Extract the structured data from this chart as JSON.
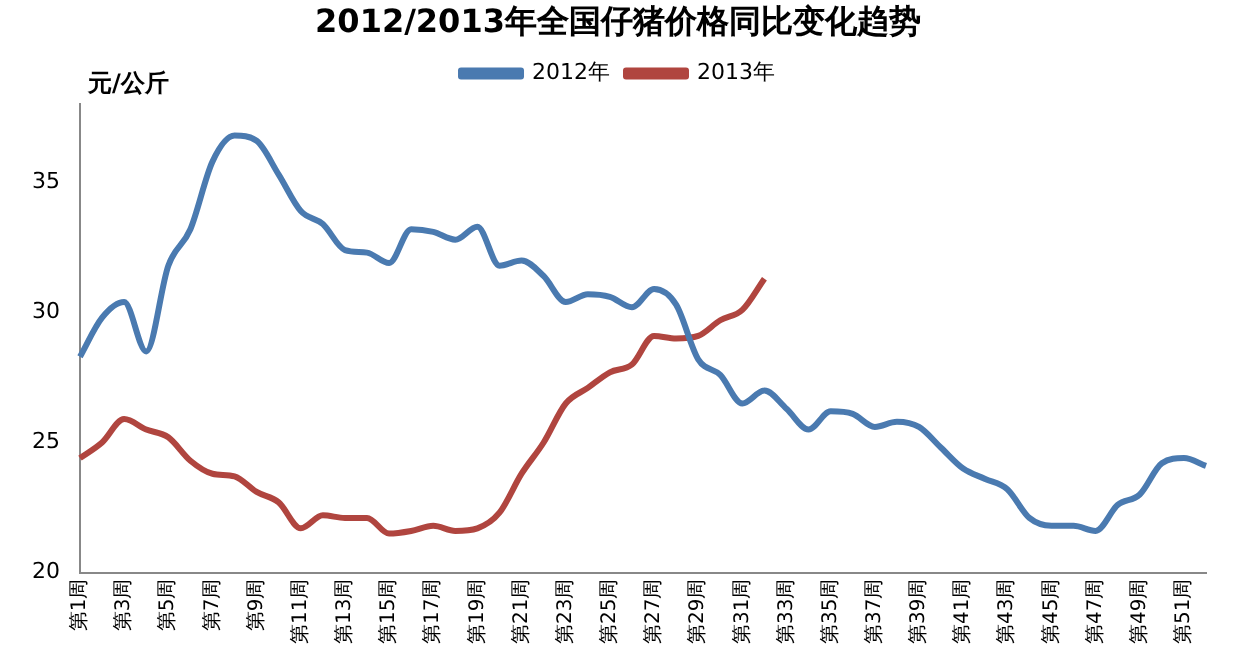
{
  "chart_data": {
    "type": "line",
    "title": "2012/2013年全国仔猪价格同比变化趋势",
    "ylabel": "元/公斤",
    "categories": [
      "第1周",
      null,
      "第3周",
      null,
      "第5周",
      null,
      "第7周",
      null,
      "第9周",
      null,
      "第11周",
      null,
      "第13周",
      null,
      "第15周",
      null,
      "第17周",
      null,
      "第19周",
      null,
      "第21周",
      null,
      "第23周",
      null,
      "第25周",
      null,
      "第27周",
      null,
      "第29周",
      null,
      "第31周",
      null,
      "第33周",
      null,
      "第35周",
      null,
      "第37周",
      null,
      "第39周",
      null,
      "第41周",
      null,
      "第43周",
      null,
      "第45周",
      null,
      "第47周",
      null,
      "第49周",
      null,
      "第51周",
      null
    ],
    "series": [
      {
        "name": "2012年",
        "color": "#4a7ab0",
        "values": [
          28.3,
          29.8,
          30.4,
          28.5,
          31.8,
          33.2,
          35.8,
          36.8,
          36.6,
          35.3,
          33.9,
          33.4,
          32.4,
          32.3,
          31.9,
          33.2,
          33.1,
          32.8,
          33.3,
          31.8,
          32.0,
          31.4,
          30.4,
          30.7,
          30.6,
          30.2,
          30.9,
          30.3,
          28.2,
          27.6,
          26.5,
          27.0,
          26.3,
          25.5,
          26.2,
          26.1,
          25.6,
          25.8,
          25.6,
          24.8,
          24.0,
          23.6,
          23.2,
          22.1,
          21.8,
          21.8,
          21.6,
          22.6,
          23.0,
          24.2,
          24.4,
          24.1
        ]
      },
      {
        "name": "2013年",
        "color": "#b0453f",
        "values": [
          24.4,
          25.0,
          25.9,
          25.5,
          25.2,
          24.3,
          23.8,
          23.7,
          23.1,
          22.7,
          21.7,
          22.2,
          22.1,
          22.1,
          21.5,
          21.6,
          21.8,
          21.6,
          21.7,
          22.3,
          23.8,
          25.0,
          26.5,
          27.1,
          27.7,
          28.0,
          29.1,
          29.0,
          29.1,
          29.7,
          30.1,
          31.3,
          null,
          null,
          null,
          null,
          null,
          null,
          null,
          null,
          null,
          null,
          null,
          null,
          null,
          null,
          null,
          null,
          null,
          null,
          null,
          null
        ]
      }
    ],
    "ylim": [
      20,
      38
    ],
    "yticks": [
      20,
      25,
      30,
      35
    ],
    "grid": false,
    "legend": "top",
    "marker": "none",
    "line_style": "solid"
  }
}
